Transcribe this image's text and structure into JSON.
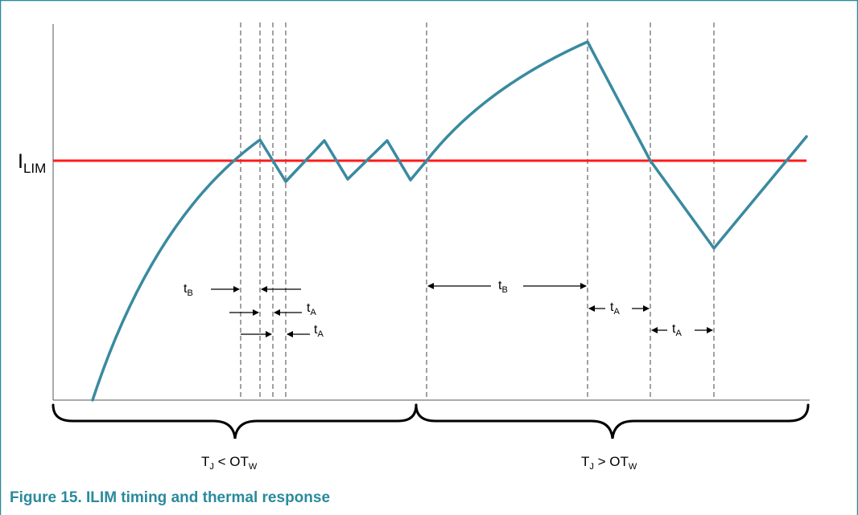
{
  "figure": {
    "caption": "Figure 15.  ILIM timing and thermal response",
    "ilim_label": {
      "main": "I",
      "sub": "LIM"
    },
    "regions": [
      {
        "main": "T",
        "sub": "J",
        "op": " < OT",
        "op_sub": "W"
      },
      {
        "main": "T",
        "sub": "J",
        "op": " > OT",
        "op_sub": "W"
      }
    ],
    "time_labels": {
      "tb": {
        "main": "t",
        "sub": "B"
      },
      "ta": {
        "main": "t",
        "sub": "A"
      }
    }
  },
  "colors": {
    "frame": "#2a8a9c",
    "current_trace": "#3a8aa0",
    "ilim_line": "#ff1a1a",
    "caption": "#2a8a9c"
  }
}
